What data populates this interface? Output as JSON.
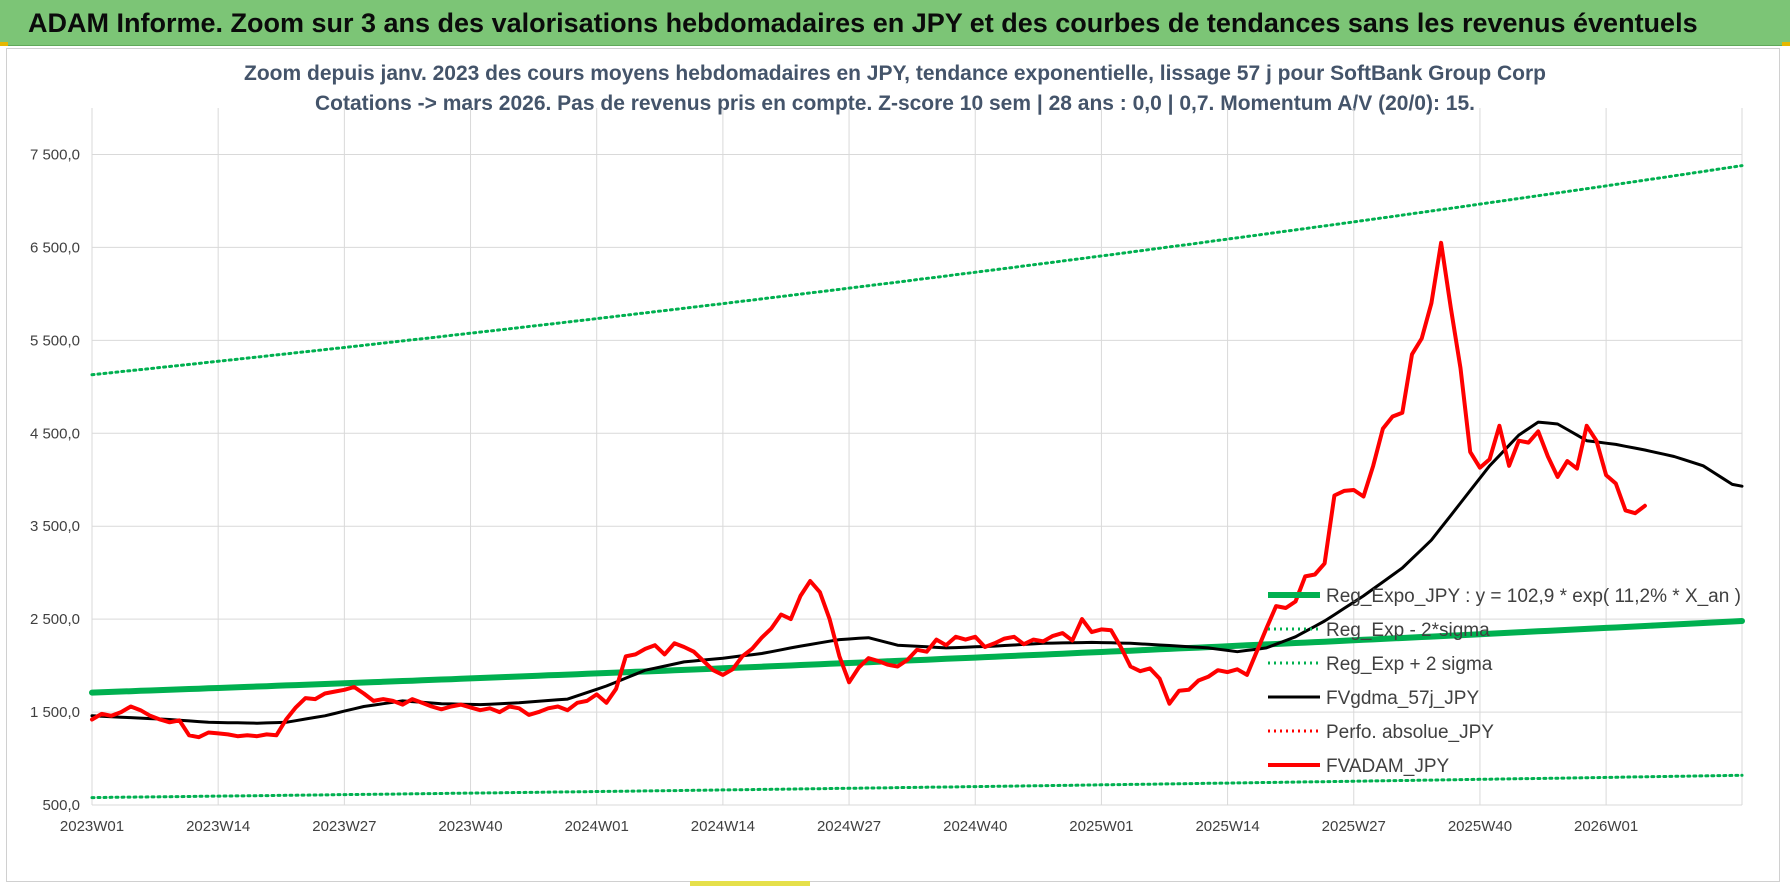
{
  "banner": {
    "title": "ADAM Informe. Zoom sur 3 ans des valorisations hebdomadaires en JPY et des courbes de tendances sans les revenus éventuels"
  },
  "chart_data": {
    "type": "line",
    "title": "Zoom depuis janv. 2023 des cours moyens hebdomadaires en JPY, tendance exponentielle, lissage 57 j pour SoftBank Group Corp",
    "subtitle": "Cotations -> mars 2026. Pas de revenus pris en compte. Z-score 10 sem | 28 ans : 0,0 | 0,7. Momentum A/V (20/0): 15.",
    "xlabel": "",
    "ylabel": "",
    "ylim": [
      500,
      8000
    ],
    "grid": true,
    "x_start_label": "2023W01",
    "x_tick_labels": [
      "2023W01",
      "2023W14",
      "2023W27",
      "2023W40",
      "2024W01",
      "2024W14",
      "2024W27",
      "2024W40",
      "2025W01",
      "2025W14",
      "2025W27",
      "2025W40",
      "2026W01"
    ],
    "x_tick_index": [
      0,
      13,
      26,
      39,
      52,
      65,
      78,
      91,
      104,
      117,
      130,
      143,
      156
    ],
    "y_ticks": [
      500,
      1500,
      2500,
      3500,
      4500,
      5500,
      6500,
      7500
    ],
    "y_tick_labels": [
      "500,0",
      "1 500,0",
      "2 500,0",
      "3 500,0",
      "4 500,0",
      "5 500,0",
      "6 500,0",
      "7 500,0"
    ],
    "n_weeks": 170,
    "legend_position": "right",
    "colors": {
      "green": "#00b050",
      "black": "#000000",
      "red": "#ff0000",
      "grid": "#d9d9d9",
      "title": "#44546a",
      "banner": "#7cc576"
    },
    "series": [
      {
        "name": "Reg_Expo_JPY : y = 102,9 * exp( 11,2% *  X_an )",
        "style": "solid-thick",
        "color": "#00b050",
        "exp_start": 1710,
        "exp_end": 2480
      },
      {
        "name": "Reg_Exp - 2*sigma",
        "style": "dotted",
        "color": "#00b050",
        "exp_start": 580,
        "exp_end": 820
      },
      {
        "name": "Reg_Exp + 2 sigma",
        "style": "dotted",
        "color": "#00b050",
        "exp_start": 5130,
        "exp_end": 7380
      },
      {
        "name": "FVgdma_57j_JPY",
        "style": "solid",
        "color": "#000000",
        "knots": [
          [
            0,
            1460
          ],
          [
            4,
            1440
          ],
          [
            8,
            1420
          ],
          [
            12,
            1390
          ],
          [
            17,
            1380
          ],
          [
            20,
            1390
          ],
          [
            24,
            1460
          ],
          [
            28,
            1560
          ],
          [
            32,
            1620
          ],
          [
            36,
            1590
          ],
          [
            40,
            1580
          ],
          [
            44,
            1600
          ],
          [
            49,
            1640
          ],
          [
            53,
            1780
          ],
          [
            57,
            1950
          ],
          [
            61,
            2040
          ],
          [
            65,
            2080
          ],
          [
            69,
            2130
          ],
          [
            73,
            2210
          ],
          [
            77,
            2280
          ],
          [
            80,
            2300
          ],
          [
            83,
            2220
          ],
          [
            88,
            2190
          ],
          [
            93,
            2210
          ],
          [
            98,
            2240
          ],
          [
            103,
            2250
          ],
          [
            107,
            2240
          ],
          [
            112,
            2210
          ],
          [
            115,
            2190
          ],
          [
            118,
            2150
          ],
          [
            121,
            2190
          ],
          [
            124,
            2310
          ],
          [
            127,
            2480
          ],
          [
            131,
            2750
          ],
          [
            135,
            3050
          ],
          [
            138,
            3350
          ],
          [
            141,
            3750
          ],
          [
            144,
            4150
          ],
          [
            147,
            4480
          ],
          [
            149,
            4620
          ],
          [
            151,
            4600
          ],
          [
            154,
            4420
          ],
          [
            157,
            4380
          ],
          [
            160,
            4320
          ],
          [
            163,
            4250
          ],
          [
            166,
            4150
          ],
          [
            169,
            3950
          ],
          [
            170,
            3930
          ]
        ]
      },
      {
        "name": "Perfo. absolue_JPY",
        "style": "dotted",
        "color": "#ff0000",
        "knots": []
      },
      {
        "name": "FVADAM_JPY",
        "style": "solid-thick",
        "color": "#ff0000",
        "knots": [
          [
            0,
            1420
          ],
          [
            1,
            1480
          ],
          [
            2,
            1460
          ],
          [
            3,
            1500
          ],
          [
            4,
            1560
          ],
          [
            5,
            1520
          ],
          [
            6,
            1460
          ],
          [
            7,
            1420
          ],
          [
            8,
            1390
          ],
          [
            9,
            1410
          ],
          [
            10,
            1250
          ],
          [
            11,
            1230
          ],
          [
            12,
            1280
          ],
          [
            13,
            1270
          ],
          [
            14,
            1260
          ],
          [
            15,
            1240
          ],
          [
            16,
            1250
          ],
          [
            17,
            1240
          ],
          [
            18,
            1260
          ],
          [
            19,
            1250
          ],
          [
            20,
            1420
          ],
          [
            21,
            1550
          ],
          [
            22,
            1650
          ],
          [
            23,
            1640
          ],
          [
            24,
            1700
          ],
          [
            25,
            1720
          ],
          [
            26,
            1740
          ],
          [
            27,
            1770
          ],
          [
            28,
            1700
          ],
          [
            29,
            1620
          ],
          [
            30,
            1640
          ],
          [
            31,
            1620
          ],
          [
            32,
            1580
          ],
          [
            33,
            1640
          ],
          [
            34,
            1600
          ],
          [
            35,
            1560
          ],
          [
            36,
            1530
          ],
          [
            37,
            1560
          ],
          [
            38,
            1580
          ],
          [
            39,
            1550
          ],
          [
            40,
            1520
          ],
          [
            41,
            1540
          ],
          [
            42,
            1500
          ],
          [
            43,
            1560
          ],
          [
            44,
            1540
          ],
          [
            45,
            1470
          ],
          [
            46,
            1500
          ],
          [
            47,
            1540
          ],
          [
            48,
            1560
          ],
          [
            49,
            1520
          ],
          [
            50,
            1600
          ],
          [
            51,
            1620
          ],
          [
            52,
            1690
          ],
          [
            53,
            1600
          ],
          [
            54,
            1750
          ],
          [
            55,
            2100
          ],
          [
            56,
            2120
          ],
          [
            57,
            2180
          ],
          [
            58,
            2220
          ],
          [
            59,
            2120
          ],
          [
            60,
            2240
          ],
          [
            61,
            2200
          ],
          [
            62,
            2150
          ],
          [
            63,
            2050
          ],
          [
            64,
            1950
          ],
          [
            65,
            1900
          ],
          [
            66,
            1960
          ],
          [
            67,
            2100
          ],
          [
            68,
            2180
          ],
          [
            69,
            2300
          ],
          [
            70,
            2400
          ],
          [
            71,
            2550
          ],
          [
            72,
            2500
          ],
          [
            73,
            2750
          ],
          [
            74,
            2910
          ],
          [
            75,
            2790
          ],
          [
            76,
            2500
          ],
          [
            77,
            2100
          ],
          [
            78,
            1820
          ],
          [
            79,
            1980
          ],
          [
            80,
            2080
          ],
          [
            81,
            2050
          ],
          [
            82,
            2010
          ],
          [
            83,
            1990
          ],
          [
            84,
            2060
          ],
          [
            85,
            2170
          ],
          [
            86,
            2150
          ],
          [
            87,
            2280
          ],
          [
            88,
            2220
          ],
          [
            89,
            2310
          ],
          [
            90,
            2280
          ],
          [
            91,
            2310
          ],
          [
            92,
            2200
          ],
          [
            93,
            2240
          ],
          [
            94,
            2290
          ],
          [
            95,
            2310
          ],
          [
            96,
            2230
          ],
          [
            97,
            2280
          ],
          [
            98,
            2260
          ],
          [
            99,
            2320
          ],
          [
            100,
            2350
          ],
          [
            101,
            2270
          ],
          [
            102,
            2500
          ],
          [
            103,
            2360
          ],
          [
            104,
            2390
          ],
          [
            105,
            2380
          ],
          [
            106,
            2200
          ],
          [
            107,
            1990
          ],
          [
            108,
            1940
          ],
          [
            109,
            1970
          ],
          [
            110,
            1860
          ],
          [
            111,
            1590
          ],
          [
            112,
            1730
          ],
          [
            113,
            1740
          ],
          [
            114,
            1840
          ],
          [
            115,
            1880
          ],
          [
            116,
            1950
          ],
          [
            117,
            1930
          ],
          [
            118,
            1960
          ],
          [
            119,
            1900
          ],
          [
            120,
            2150
          ],
          [
            121,
            2400
          ],
          [
            122,
            2640
          ],
          [
            123,
            2620
          ],
          [
            124,
            2690
          ],
          [
            125,
            2960
          ],
          [
            126,
            2980
          ],
          [
            127,
            3100
          ],
          [
            128,
            3830
          ],
          [
            129,
            3880
          ],
          [
            130,
            3890
          ],
          [
            131,
            3820
          ],
          [
            132,
            4150
          ],
          [
            133,
            4550
          ],
          [
            134,
            4680
          ],
          [
            135,
            4720
          ],
          [
            136,
            5350
          ],
          [
            137,
            5520
          ],
          [
            138,
            5900
          ],
          [
            139,
            6550
          ],
          [
            140,
            5850
          ],
          [
            141,
            5200
          ],
          [
            142,
            4300
          ],
          [
            143,
            4130
          ],
          [
            144,
            4220
          ],
          [
            145,
            4580
          ],
          [
            146,
            4150
          ],
          [
            147,
            4420
          ],
          [
            148,
            4400
          ],
          [
            149,
            4520
          ],
          [
            150,
            4250
          ],
          [
            151,
            4030
          ],
          [
            152,
            4200
          ],
          [
            153,
            4120
          ],
          [
            154,
            4580
          ],
          [
            155,
            4420
          ],
          [
            156,
            4050
          ],
          [
            157,
            3960
          ],
          [
            158,
            3670
          ],
          [
            159,
            3640
          ],
          [
            160,
            3720
          ]
        ]
      }
    ]
  }
}
